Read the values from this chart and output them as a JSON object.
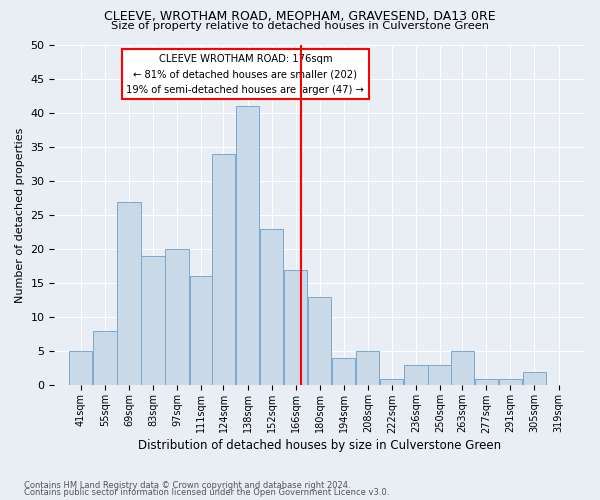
{
  "title": "CLEEVE, WROTHAM ROAD, MEOPHAM, GRAVESEND, DA13 0RE",
  "subtitle": "Size of property relative to detached houses in Culverstone Green",
  "xlabel": "Distribution of detached houses by size in Culverstone Green",
  "ylabel": "Number of detached properties",
  "footnote1": "Contains HM Land Registry data © Crown copyright and database right 2024.",
  "footnote2": "Contains public sector information licensed under the Open Government Licence v3.0.",
  "bar_labels": [
    "41sqm",
    "55sqm",
    "69sqm",
    "83sqm",
    "97sqm",
    "111sqm",
    "124sqm",
    "138sqm",
    "152sqm",
    "166sqm",
    "180sqm",
    "194sqm",
    "208sqm",
    "222sqm",
    "236sqm",
    "250sqm",
    "263sqm",
    "277sqm",
    "291sqm",
    "305sqm",
    "319sqm"
  ],
  "bar_values": [
    5,
    8,
    27,
    19,
    20,
    16,
    34,
    41,
    23,
    17,
    13,
    4,
    5,
    1,
    3,
    3,
    5,
    1,
    1,
    2,
    0
  ],
  "bar_color": "#c9d9e8",
  "bar_edge_color": "#7aa8cc",
  "vline_color": "red",
  "annotation_title": "CLEEVE WROTHAM ROAD: 176sqm",
  "annotation_line2": "← 81% of detached houses are smaller (202)",
  "annotation_line3": "19% of semi-detached houses are larger (47) →",
  "ylim": [
    0,
    50
  ],
  "yticks": [
    0,
    5,
    10,
    15,
    20,
    25,
    30,
    35,
    40,
    45,
    50
  ],
  "bin_width": 14,
  "property_size": 176,
  "background_color": "#e8eef4",
  "grid_color": "white"
}
